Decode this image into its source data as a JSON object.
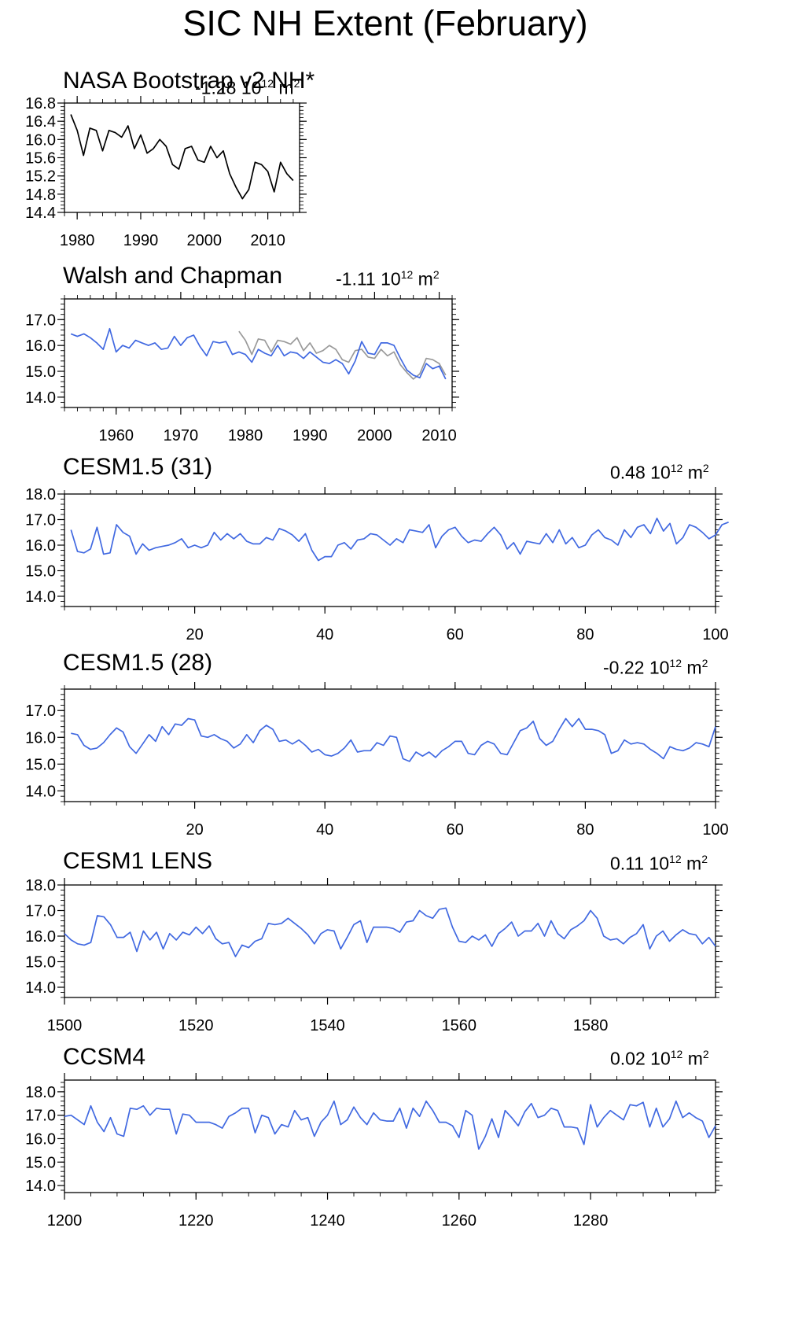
{
  "figure_title": "SIC NH Extent (February)",
  "colors": {
    "model": "#4169e1",
    "obs": "#000000",
    "obs_gray": "#9a9a9a"
  },
  "chart_data": [
    {
      "type": "line",
      "title": "NASA Bootstrap v2 NH*",
      "trend": {
        "value": "-1.28",
        "unit_base": "10",
        "unit_exp": "12",
        "unit_m": "m",
        "unit_m_exp": "2"
      },
      "xlim": [
        1978,
        2015
      ],
      "ylim": [
        14.4,
        16.8
      ],
      "xticks": [
        1980,
        1990,
        2000,
        2010
      ],
      "yticks": [
        "14.4",
        "14.8",
        "15.2",
        "15.6",
        "16.0",
        "16.4",
        "16.8"
      ],
      "series": [
        {
          "color": "#000000",
          "x": [
            1979,
            1980,
            1981,
            1982,
            1983,
            1984,
            1985,
            1986,
            1987,
            1988,
            1989,
            1990,
            1991,
            1992,
            1993,
            1994,
            1995,
            1996,
            1997,
            1998,
            1999,
            2000,
            2001,
            2002,
            2003,
            2004,
            2005,
            2006,
            2007,
            2008,
            2009,
            2010,
            2011,
            2012,
            2013,
            2014
          ],
          "y": [
            16.55,
            16.2,
            15.65,
            16.25,
            16.2,
            15.75,
            16.2,
            16.15,
            16.05,
            16.3,
            15.8,
            16.1,
            15.7,
            15.8,
            16.0,
            15.85,
            15.45,
            15.35,
            15.8,
            15.85,
            15.55,
            15.5,
            15.85,
            15.6,
            15.75,
            15.25,
            14.95,
            14.7,
            14.9,
            15.5,
            15.45,
            15.3,
            14.85,
            15.5,
            15.25,
            15.1
          ]
        }
      ]
    },
    {
      "type": "line",
      "title": "Walsh and Chapman",
      "trend": {
        "value": "-1.11",
        "unit_base": "10",
        "unit_exp": "12",
        "unit_m": "m",
        "unit_m_exp": "2"
      },
      "xlim": [
        1952,
        2012
      ],
      "ylim": [
        13.6,
        17.8
      ],
      "xticks": [
        1960,
        1970,
        1980,
        1990,
        2000,
        2010
      ],
      "yticks": [
        "14.0",
        "15.0",
        "16.0",
        "17.0"
      ],
      "series": [
        {
          "color": "#4169e1",
          "x": [
            1953,
            1954,
            1955,
            1956,
            1957,
            1958,
            1959,
            1960,
            1961,
            1962,
            1963,
            1964,
            1965,
            1966,
            1967,
            1968,
            1969,
            1970,
            1971,
            1972,
            1973,
            1974,
            1975,
            1976,
            1977,
            1978,
            1979,
            1980,
            1981,
            1982,
            1983,
            1984,
            1985,
            1986,
            1987,
            1988,
            1989,
            1990,
            1991,
            1992,
            1993,
            1994,
            1995,
            1996,
            1997,
            1998,
            1999,
            2000,
            2001,
            2002,
            2003,
            2004,
            2005,
            2006,
            2007,
            2008,
            2009,
            2010,
            2011
          ],
          "y": [
            16.45,
            16.35,
            16.45,
            16.3,
            16.1,
            15.85,
            16.65,
            15.75,
            16.0,
            15.9,
            16.2,
            16.1,
            16.0,
            16.1,
            15.85,
            15.9,
            16.35,
            16.0,
            16.3,
            16.4,
            15.95,
            15.6,
            16.15,
            16.1,
            16.15,
            15.65,
            15.75,
            15.65,
            15.35,
            15.85,
            15.7,
            15.6,
            16.0,
            15.6,
            15.75,
            15.7,
            15.5,
            15.75,
            15.55,
            15.35,
            15.3,
            15.45,
            15.3,
            14.9,
            15.4,
            16.15,
            15.7,
            15.65,
            16.1,
            16.1,
            16.0,
            15.5,
            15.05,
            14.85,
            14.75,
            15.3,
            15.1,
            15.2,
            14.7
          ]
        },
        {
          "color": "#9a9a9a",
          "x": [
            1979,
            1980,
            1981,
            1982,
            1983,
            1984,
            1985,
            1986,
            1987,
            1988,
            1989,
            1990,
            1991,
            1992,
            1993,
            1994,
            1995,
            1996,
            1997,
            1998,
            1999,
            2000,
            2001,
            2002,
            2003,
            2004,
            2005,
            2006,
            2007,
            2008,
            2009,
            2010,
            2011
          ],
          "y": [
            16.55,
            16.2,
            15.65,
            16.25,
            16.2,
            15.75,
            16.2,
            16.15,
            16.05,
            16.3,
            15.8,
            16.1,
            15.7,
            15.8,
            16.0,
            15.85,
            15.45,
            15.35,
            15.8,
            15.85,
            15.55,
            15.5,
            15.85,
            15.6,
            15.75,
            15.25,
            14.95,
            14.7,
            14.9,
            15.5,
            15.45,
            15.3,
            14.85
          ]
        }
      ]
    },
    {
      "type": "line",
      "title": "CESM1.5 (31)",
      "trend": {
        "value": "0.48",
        "unit_base": "10",
        "unit_exp": "12",
        "unit_m": "m",
        "unit_m_exp": "2"
      },
      "xlim": [
        0,
        100
      ],
      "ylim": [
        13.6,
        18.0
      ],
      "xticks": [
        20,
        40,
        60,
        80,
        100
      ],
      "yticks": [
        "14.0",
        "15.0",
        "16.0",
        "17.0",
        "18.0"
      ],
      "series": [
        {
          "color": "#4169e1",
          "x_start": 1,
          "y": [
            16.6,
            15.75,
            15.7,
            15.85,
            16.7,
            15.65,
            15.7,
            16.8,
            16.5,
            16.35,
            15.65,
            16.05,
            15.8,
            15.9,
            15.95,
            16.0,
            16.1,
            16.25,
            15.9,
            16.0,
            15.9,
            16.0,
            16.5,
            16.2,
            16.45,
            16.25,
            16.45,
            16.15,
            16.05,
            16.05,
            16.3,
            16.2,
            16.65,
            16.55,
            16.4,
            16.15,
            16.45,
            15.8,
            15.4,
            15.55,
            15.55,
            16.0,
            16.1,
            15.85,
            16.2,
            16.25,
            16.45,
            16.4,
            16.2,
            16.0,
            16.25,
            16.1,
            16.6,
            16.55,
            16.5,
            16.8,
            15.9,
            16.35,
            16.6,
            16.7,
            16.35,
            16.1,
            16.2,
            16.15,
            16.45,
            16.7,
            16.4,
            15.85,
            16.1,
            15.65,
            16.15,
            16.1,
            16.05,
            16.45,
            16.1,
            16.6,
            16.05,
            16.3,
            15.9,
            16.0,
            16.4,
            16.6,
            16.3,
            16.2,
            16.0,
            16.6,
            16.3,
            16.7,
            16.8,
            16.45,
            17.05,
            16.55,
            16.85,
            16.05,
            16.3,
            16.8,
            16.7,
            16.5,
            16.25,
            16.4,
            16.8,
            16.9
          ]
        }
      ]
    },
    {
      "type": "line",
      "title": "CESM1.5 (28)",
      "trend": {
        "value": "-0.22",
        "unit_base": "10",
        "unit_exp": "12",
        "unit_m": "m",
        "unit_m_exp": "2"
      },
      "xlim": [
        0,
        100
      ],
      "ylim": [
        13.6,
        17.8
      ],
      "xticks": [
        20,
        40,
        60,
        80,
        100
      ],
      "yticks": [
        "14.0",
        "15.0",
        "16.0",
        "17.0"
      ],
      "series": [
        {
          "color": "#4169e1",
          "x_start": 1,
          "y": [
            16.15,
            16.1,
            15.7,
            15.55,
            15.6,
            15.8,
            16.1,
            16.35,
            16.2,
            15.65,
            15.4,
            15.75,
            16.1,
            15.85,
            16.4,
            16.1,
            16.5,
            16.45,
            16.7,
            16.65,
            16.05,
            16.0,
            16.1,
            15.95,
            15.85,
            15.6,
            15.75,
            16.1,
            15.8,
            16.25,
            16.45,
            16.3,
            15.85,
            15.9,
            15.75,
            15.9,
            15.7,
            15.45,
            15.55,
            15.35,
            15.3,
            15.4,
            15.6,
            15.9,
            15.45,
            15.5,
            15.5,
            15.8,
            15.7,
            16.05,
            16.0,
            15.2,
            15.1,
            15.45,
            15.3,
            15.45,
            15.25,
            15.5,
            15.65,
            15.85,
            15.85,
            15.4,
            15.35,
            15.7,
            15.85,
            15.75,
            15.4,
            15.35,
            15.8,
            16.25,
            16.35,
            16.6,
            15.95,
            15.7,
            15.85,
            16.3,
            16.7,
            16.4,
            16.7,
            16.3,
            16.3,
            16.25,
            16.1,
            15.4,
            15.5,
            15.9,
            15.75,
            15.8,
            15.75,
            15.55,
            15.4,
            15.2,
            15.65,
            15.55,
            15.5,
            15.6,
            15.8,
            15.75,
            15.65,
            16.4
          ]
        }
      ]
    },
    {
      "type": "line",
      "title": "CESM1 LENS",
      "trend": {
        "value": "0.11",
        "unit_base": "10",
        "unit_exp": "12",
        "unit_m": "m",
        "unit_m_exp": "2"
      },
      "xlim": [
        1500,
        1599
      ],
      "ylim": [
        13.6,
        18.0
      ],
      "xticks": [
        1500,
        1520,
        1540,
        1560,
        1580
      ],
      "yticks": [
        "14.0",
        "15.0",
        "16.0",
        "17.0",
        "18.0"
      ],
      "series": [
        {
          "color": "#4169e1",
          "x_start": 1500,
          "y": [
            16.1,
            15.85,
            15.7,
            15.65,
            15.75,
            16.8,
            16.75,
            16.45,
            15.95,
            15.95,
            16.15,
            15.4,
            16.2,
            15.85,
            16.15,
            15.5,
            16.1,
            15.85,
            16.15,
            16.05,
            16.35,
            16.1,
            16.4,
            15.9,
            15.7,
            15.75,
            15.2,
            15.65,
            15.55,
            15.8,
            15.9,
            16.5,
            16.45,
            16.5,
            16.7,
            16.5,
            16.3,
            16.05,
            15.7,
            16.1,
            16.25,
            16.2,
            15.5,
            15.95,
            16.45,
            16.6,
            15.75,
            16.35,
            16.35,
            16.35,
            16.3,
            16.15,
            16.55,
            16.6,
            17.0,
            16.8,
            16.7,
            17.05,
            17.1,
            16.35,
            15.8,
            15.75,
            16.0,
            15.85,
            16.05,
            15.6,
            16.1,
            16.3,
            16.55,
            16.0,
            16.2,
            16.2,
            16.5,
            16.0,
            16.6,
            16.1,
            15.9,
            16.25,
            16.4,
            16.6,
            17.0,
            16.7,
            16.0,
            15.85,
            15.9,
            15.7,
            15.95,
            16.1,
            16.45,
            15.5,
            16.0,
            16.2,
            15.8,
            16.05,
            16.25,
            16.1,
            16.05,
            15.7,
            15.95,
            15.6
          ]
        }
      ]
    },
    {
      "type": "line",
      "title": "CCSM4",
      "trend": {
        "value": "0.02",
        "unit_base": "10",
        "unit_exp": "12",
        "unit_m": "m",
        "unit_m_exp": "2"
      },
      "xlim": [
        1200,
        1299
      ],
      "ylim": [
        13.7,
        18.5
      ],
      "xticks": [
        1200,
        1220,
        1240,
        1260,
        1280
      ],
      "yticks": [
        "14.0",
        "15.0",
        "16.0",
        "17.0",
        "18.0"
      ],
      "series": [
        {
          "color": "#4169e1",
          "x_start": 1200,
          "y": [
            16.95,
            17.0,
            16.8,
            16.6,
            17.4,
            16.7,
            16.3,
            16.9,
            16.2,
            16.1,
            17.3,
            17.25,
            17.4,
            17.0,
            17.3,
            17.25,
            17.25,
            16.2,
            17.05,
            17.0,
            16.7,
            16.7,
            16.7,
            16.6,
            16.45,
            16.95,
            17.1,
            17.3,
            17.3,
            16.25,
            17.0,
            16.9,
            16.2,
            16.6,
            16.5,
            17.2,
            16.8,
            16.9,
            16.1,
            16.7,
            17.0,
            17.6,
            16.6,
            16.8,
            17.35,
            16.9,
            16.6,
            17.1,
            16.8,
            16.75,
            16.75,
            17.3,
            16.45,
            17.3,
            16.95,
            17.6,
            17.2,
            16.7,
            16.7,
            16.55,
            16.05,
            17.2,
            17.0,
            15.55,
            16.1,
            16.85,
            16.05,
            17.2,
            16.9,
            16.55,
            17.15,
            17.5,
            16.9,
            17.0,
            17.3,
            17.2,
            16.5,
            16.5,
            16.45,
            15.75,
            17.45,
            16.5,
            16.9,
            17.2,
            17.0,
            16.8,
            17.45,
            17.4,
            17.55,
            16.5,
            17.3,
            16.5,
            16.85,
            17.6,
            16.9,
            17.1,
            16.9,
            16.75,
            16.05,
            16.55
          ]
        }
      ]
    }
  ]
}
